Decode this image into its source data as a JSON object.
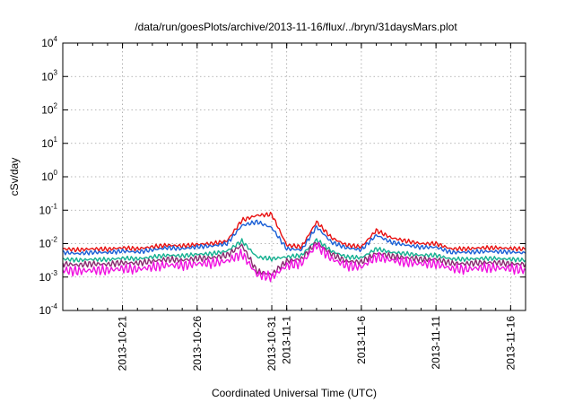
{
  "chart_data": {
    "type": "line",
    "title": "/data/run/goesPlots/archive/2013-11-16/flux/../bryn/31daysMars.plot",
    "xlabel": "Coordinated Universal Time (UTC)",
    "ylabel": "cSv/day",
    "y_scale": "log",
    "ylim": [
      0.0001,
      10000
    ],
    "y_ticks": [
      {
        "value": 0.0001,
        "base": "10",
        "exp": "-4"
      },
      {
        "value": 0.001,
        "base": "10",
        "exp": "-3"
      },
      {
        "value": 0.01,
        "base": "10",
        "exp": "-2"
      },
      {
        "value": 0.1,
        "base": "10",
        "exp": "-1"
      },
      {
        "value": 1,
        "base": "10",
        "exp": "0"
      },
      {
        "value": 10,
        "base": "10",
        "exp": "1"
      },
      {
        "value": 100,
        "base": "10",
        "exp": "2"
      },
      {
        "value": 1000,
        "base": "10",
        "exp": "3"
      },
      {
        "value": 10000,
        "base": "10",
        "exp": "4"
      }
    ],
    "xlim": [
      "2013-10-17",
      "2013-11-17"
    ],
    "x_ticks": [
      {
        "date": "2013-10-21",
        "label": "2013-10-21"
      },
      {
        "date": "2013-10-26",
        "label": "2013-10-26"
      },
      {
        "date": "2013-10-31",
        "label": "2013-10-31"
      },
      {
        "date": "2013-11-01",
        "label": "2013-11-1"
      },
      {
        "date": "2013-11-06",
        "label": "2013-11-6"
      },
      {
        "date": "2013-11-11",
        "label": "2013-11-11"
      },
      {
        "date": "2013-11-16",
        "label": "2013-11-16"
      }
    ],
    "grid": true,
    "x": [
      "2013-10-17",
      "2013-10-18",
      "2013-10-19",
      "2013-10-20",
      "2013-10-21",
      "2013-10-22",
      "2013-10-23",
      "2013-10-24",
      "2013-10-25",
      "2013-10-26",
      "2013-10-27",
      "2013-10-28",
      "2013-10-29",
      "2013-10-30",
      "2013-10-31",
      "2013-11-01",
      "2013-11-02",
      "2013-11-03",
      "2013-11-04",
      "2013-11-05",
      "2013-11-06",
      "2013-11-07",
      "2013-11-08",
      "2013-11-09",
      "2013-11-10",
      "2013-11-11",
      "2013-11-12",
      "2013-11-13",
      "2013-11-14",
      "2013-11-15",
      "2013-11-16",
      "2013-11-17"
    ],
    "series": [
      {
        "color": "#e81010",
        "values": [
          0.007,
          0.0065,
          0.007,
          0.0068,
          0.0075,
          0.007,
          0.008,
          0.009,
          0.0085,
          0.0095,
          0.01,
          0.012,
          0.05,
          0.07,
          0.075,
          0.009,
          0.008,
          0.045,
          0.015,
          0.009,
          0.008,
          0.025,
          0.015,
          0.012,
          0.01,
          0.01,
          0.007,
          0.007,
          0.0075,
          0.0075,
          0.0072,
          0.0068
        ]
      },
      {
        "color": "#1a5fd6",
        "values": [
          0.0055,
          0.005,
          0.0055,
          0.0054,
          0.006,
          0.0056,
          0.0065,
          0.0075,
          0.007,
          0.008,
          0.0085,
          0.01,
          0.035,
          0.045,
          0.03,
          0.007,
          0.0065,
          0.032,
          0.011,
          0.0075,
          0.0065,
          0.018,
          0.011,
          0.009,
          0.0078,
          0.0078,
          0.0055,
          0.0055,
          0.0058,
          0.0058,
          0.0056,
          0.0052
        ]
      },
      {
        "color": "#14b090",
        "values": [
          0.0035,
          0.0032,
          0.0034,
          0.0033,
          0.0037,
          0.0035,
          0.004,
          0.0045,
          0.0043,
          0.0048,
          0.005,
          0.006,
          0.012,
          0.004,
          0.0035,
          0.004,
          0.0045,
          0.013,
          0.006,
          0.004,
          0.0038,
          0.007,
          0.0055,
          0.005,
          0.0045,
          0.0045,
          0.0035,
          0.0034,
          0.0036,
          0.0036,
          0.0034,
          0.0032
        ]
      },
      {
        "color": "#8a2a70",
        "values": [
          0.0025,
          0.0023,
          0.0025,
          0.0024,
          0.0027,
          0.0026,
          0.003,
          0.0034,
          0.0032,
          0.0036,
          0.0038,
          0.0045,
          0.009,
          0.0015,
          0.0012,
          0.003,
          0.0035,
          0.011,
          0.0048,
          0.003,
          0.0028,
          0.0052,
          0.0042,
          0.0038,
          0.0034,
          0.0034,
          0.0026,
          0.0025,
          0.0027,
          0.0027,
          0.0025,
          0.0024
        ]
      },
      {
        "color": "#f010e0",
        "values": [
          0.0016,
          0.0015,
          0.0016,
          0.0016,
          0.0018,
          0.0017,
          0.002,
          0.0023,
          0.0022,
          0.0025,
          0.0026,
          0.003,
          0.005,
          0.0012,
          0.001,
          0.0022,
          0.0026,
          0.009,
          0.0035,
          0.0022,
          0.002,
          0.004,
          0.0032,
          0.0028,
          0.0025,
          0.0025,
          0.0018,
          0.0017,
          0.0019,
          0.0019,
          0.0018,
          0.0016
        ]
      }
    ]
  }
}
